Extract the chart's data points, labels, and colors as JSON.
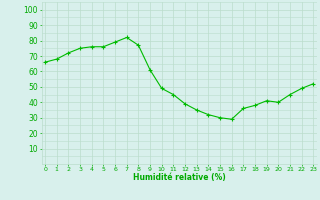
{
  "x": [
    0,
    1,
    2,
    3,
    4,
    5,
    6,
    7,
    8,
    9,
    10,
    11,
    12,
    13,
    14,
    15,
    16,
    17,
    18,
    19,
    20,
    21,
    22,
    23
  ],
  "y": [
    66,
    68,
    72,
    75,
    76,
    76,
    79,
    82,
    77,
    61,
    49,
    45,
    39,
    35,
    32,
    30,
    29,
    36,
    38,
    41,
    40,
    45,
    49,
    52
  ],
  "line_color": "#00bb00",
  "marker_color": "#00bb00",
  "bg_color": "#d8f0ec",
  "grid_color": "#bbddcc",
  "xlabel": "Humidité relative (%)",
  "xlabel_color": "#00aa00",
  "tick_color": "#00aa00",
  "ylim": [
    0,
    105
  ],
  "yticks": [
    10,
    20,
    30,
    40,
    50,
    60,
    70,
    80,
    90,
    100
  ],
  "xlim": [
    -0.3,
    23.3
  ],
  "figsize": [
    3.2,
    2.0
  ],
  "dpi": 100
}
